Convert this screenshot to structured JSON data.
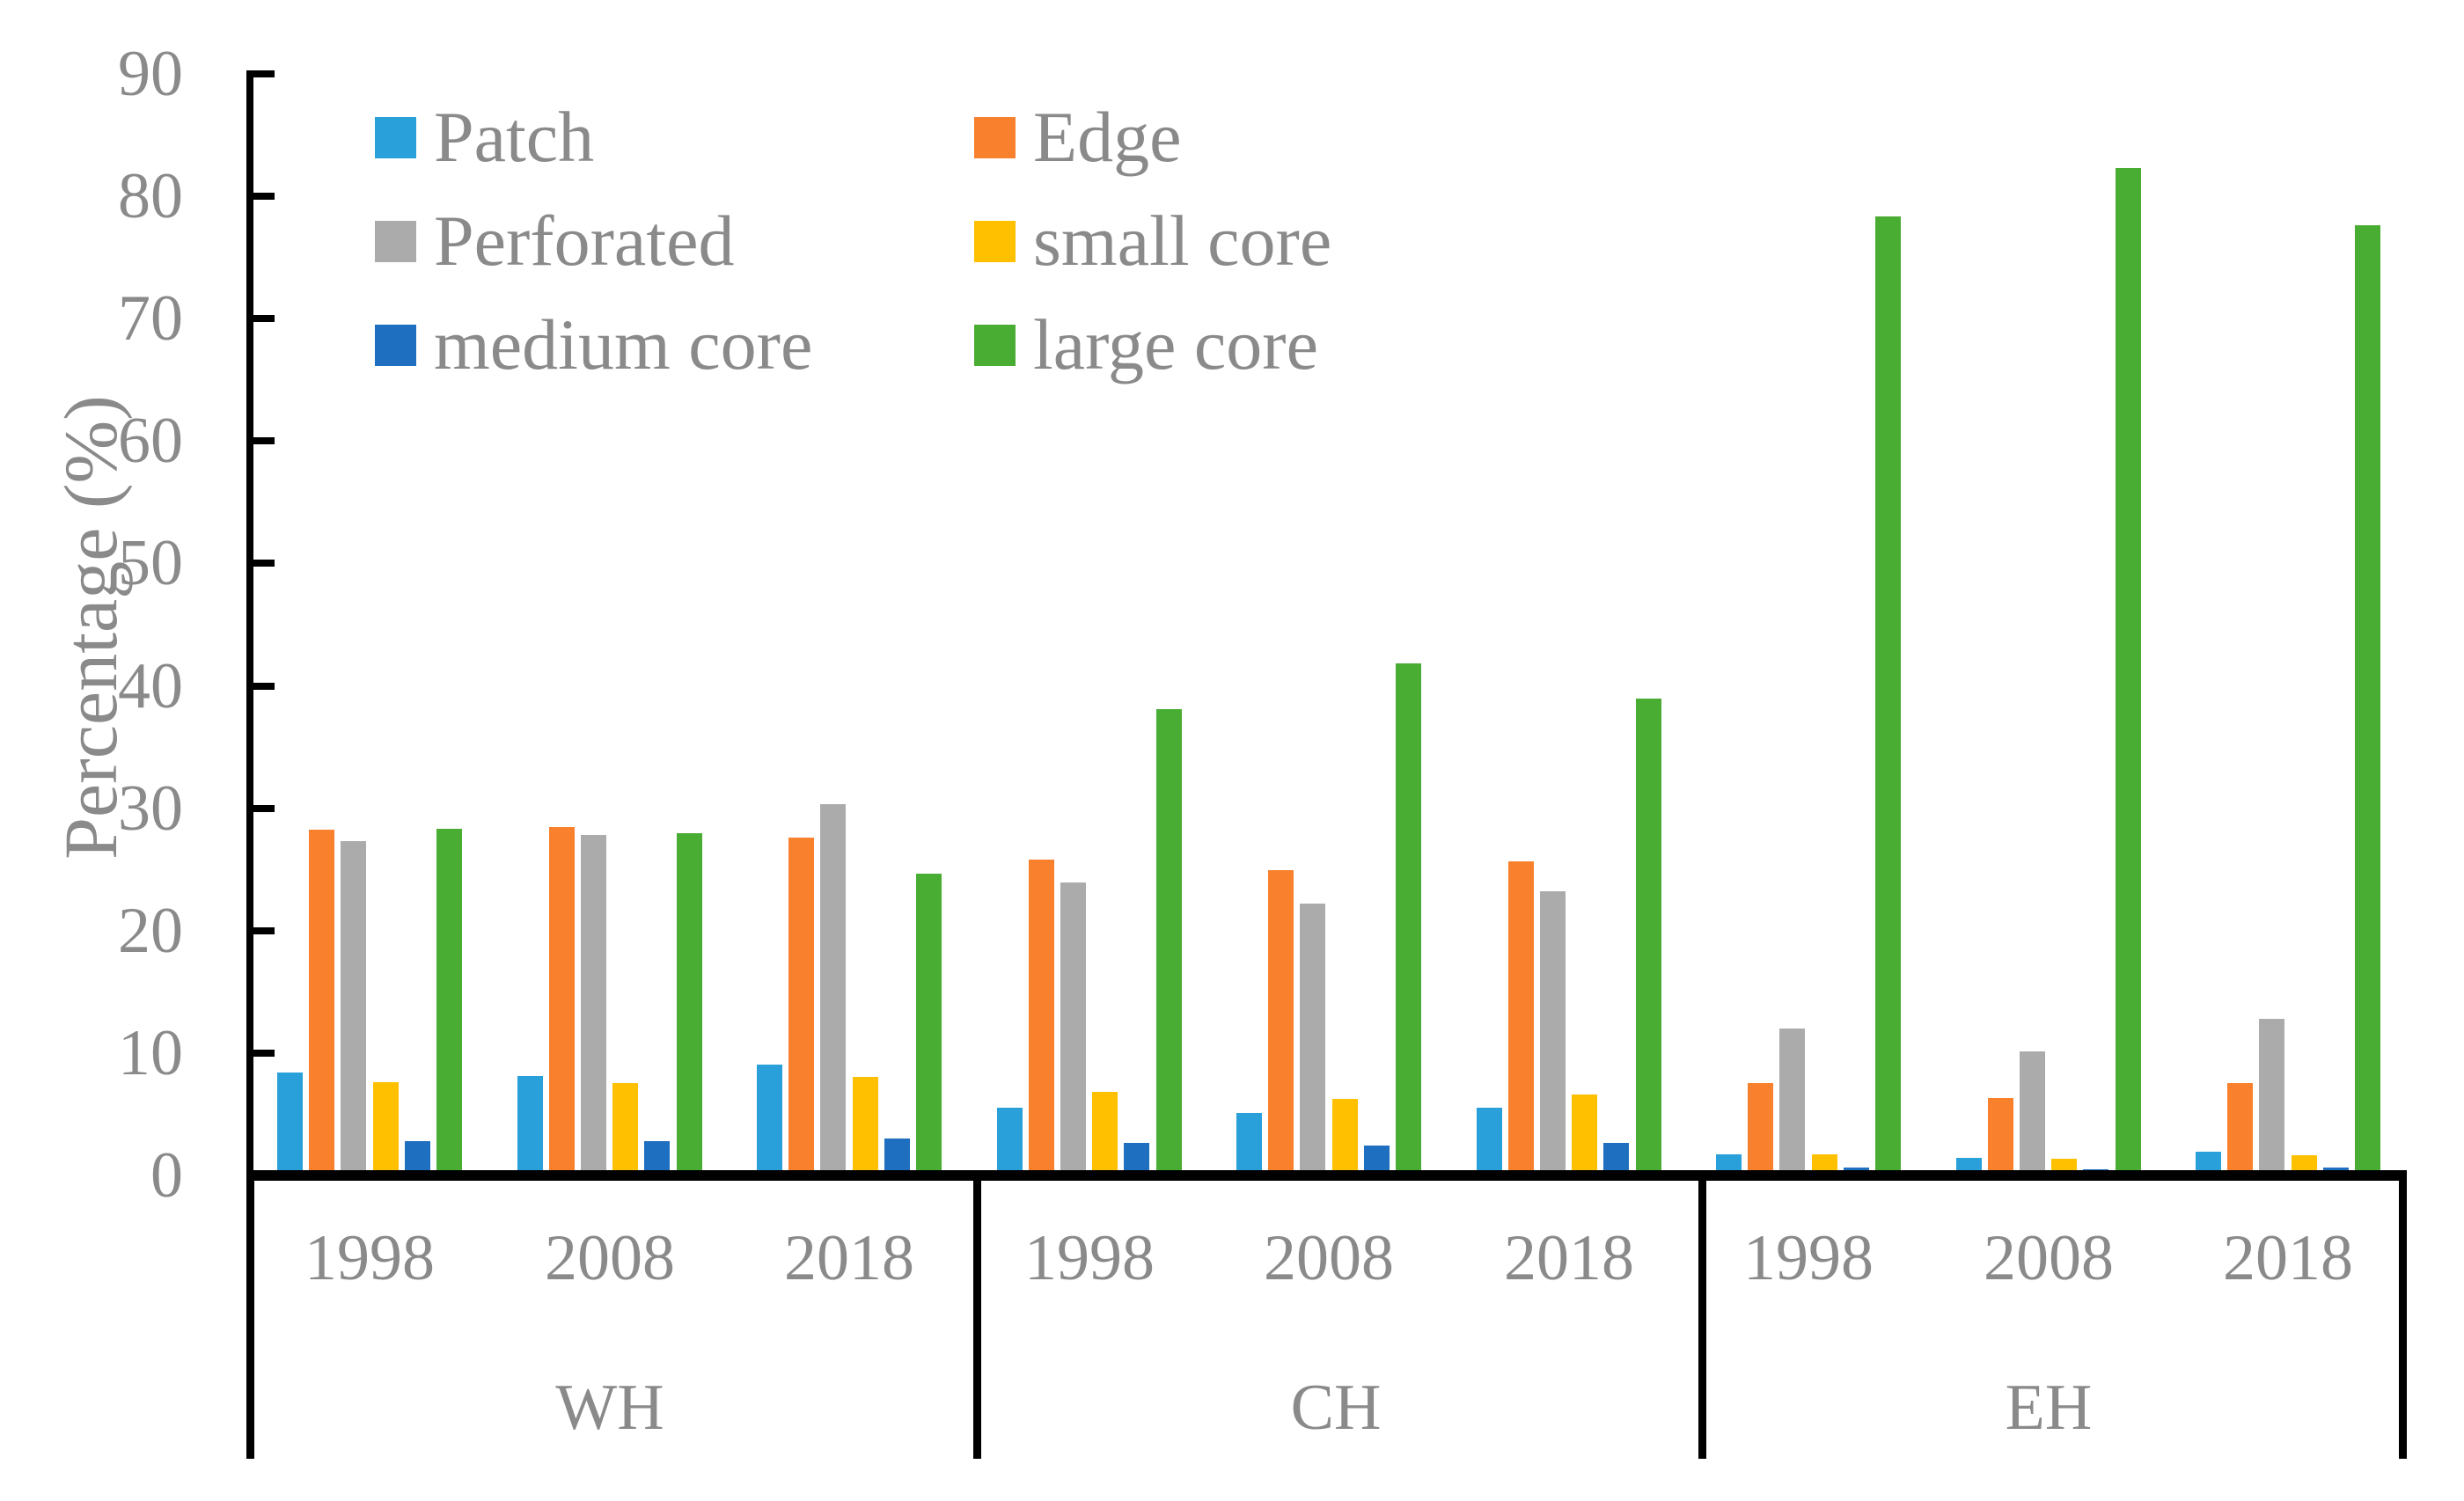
{
  "axis": {
    "y_label": "Percentage (%)",
    "y_ticks": [
      90,
      80,
      70,
      60,
      50,
      40,
      30,
      20,
      10,
      0
    ],
    "y_min": 0,
    "y_max": 90
  },
  "legend": [
    {
      "label": "Patch",
      "color": "#29A0DA"
    },
    {
      "label": "Edge",
      "color": "#F9802D"
    },
    {
      "label": "Perforated",
      "color": "#ABABAB"
    },
    {
      "label": "small core",
      "color": "#FFC000"
    },
    {
      "label": "medium core",
      "color": "#1E6FC0"
    },
    {
      "label": "large core",
      "color": "#4AAD33"
    }
  ],
  "chart_data": {
    "type": "bar",
    "title": "",
    "xlabel": "",
    "ylabel": "Percentage (%)",
    "ylim": [
      0,
      90
    ],
    "grid": false,
    "legend_position": "upper-left-two-columns",
    "groups": [
      "WH",
      "CH",
      "EH"
    ],
    "years": [
      "1998",
      "2008",
      "2018"
    ],
    "series_order": [
      "Patch",
      "Edge",
      "Perforated",
      "small core",
      "medium core",
      "large core"
    ],
    "clusters": [
      {
        "group": "WH",
        "year": "1998",
        "values": [
          8.0,
          27.8,
          26.9,
          7.2,
          2.4,
          27.9
        ]
      },
      {
        "group": "WH",
        "year": "2008",
        "values": [
          7.7,
          28.0,
          27.4,
          7.1,
          2.4,
          27.5
        ]
      },
      {
        "group": "WH",
        "year": "2018",
        "values": [
          8.6,
          27.2,
          29.9,
          7.6,
          2.6,
          24.2
        ]
      },
      {
        "group": "CH",
        "year": "1998",
        "values": [
          5.1,
          25.4,
          23.5,
          6.4,
          2.2,
          37.7
        ]
      },
      {
        "group": "CH",
        "year": "2008",
        "values": [
          4.7,
          24.5,
          21.8,
          5.8,
          2.0,
          41.4
        ]
      },
      {
        "group": "CH",
        "year": "2018",
        "values": [
          5.1,
          25.2,
          22.8,
          6.2,
          2.2,
          38.5
        ]
      },
      {
        "group": "EH",
        "year": "1998",
        "values": [
          1.3,
          7.1,
          11.6,
          1.3,
          0.2,
          77.9
        ]
      },
      {
        "group": "EH",
        "year": "2008",
        "values": [
          1.0,
          5.9,
          9.7,
          0.9,
          0.1,
          81.9
        ]
      },
      {
        "group": "EH",
        "year": "2018",
        "values": [
          1.5,
          7.1,
          12.4,
          1.2,
          0.2,
          77.2
        ]
      }
    ]
  }
}
